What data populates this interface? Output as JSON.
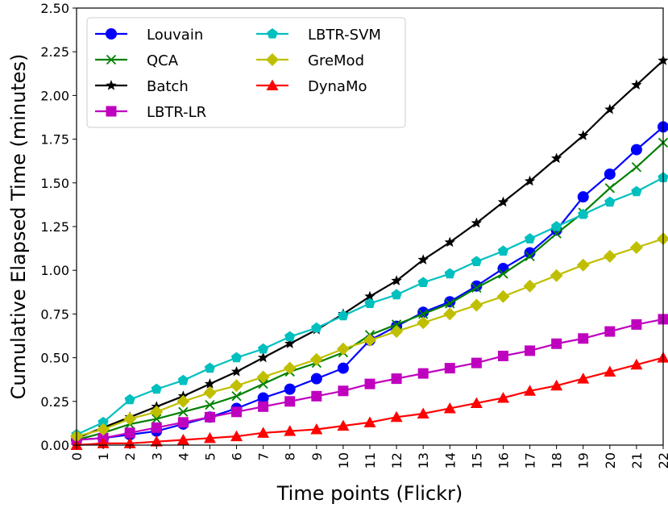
{
  "chart_data": {
    "type": "line",
    "title": "",
    "xlabel": "Time points (Flickr)",
    "ylabel": "Cumulative Elapsed Time (minutes)",
    "x": [
      0,
      1,
      2,
      3,
      4,
      5,
      6,
      7,
      8,
      9,
      10,
      11,
      12,
      13,
      14,
      15,
      16,
      17,
      18,
      19,
      20,
      21,
      22
    ],
    "xlim": [
      0,
      22
    ],
    "ylim": [
      0,
      2.5
    ],
    "yticks": [
      "0.00",
      "0.25",
      "0.50",
      "0.75",
      "1.00",
      "1.25",
      "1.50",
      "1.75",
      "2.00",
      "2.25",
      "2.50"
    ],
    "xticks": [
      "0",
      "1",
      "2",
      "3",
      "4",
      "5",
      "6",
      "7",
      "8",
      "9",
      "10",
      "11",
      "12",
      "13",
      "14",
      "15",
      "16",
      "17",
      "18",
      "19",
      "20",
      "21",
      "22"
    ],
    "grid": false,
    "legend_position": "top-left",
    "series": [
      {
        "name": "Louvain",
        "color": "#0000ff",
        "marker": "circle",
        "values": [
          0.03,
          0.04,
          0.06,
          0.08,
          0.12,
          0.16,
          0.21,
          0.27,
          0.32,
          0.38,
          0.44,
          0.6,
          0.68,
          0.76,
          0.82,
          0.91,
          1.01,
          1.1,
          1.23,
          1.42,
          1.55,
          1.69,
          1.82
        ]
      },
      {
        "name": "QCA",
        "color": "#008000",
        "marker": "x",
        "values": [
          0.03,
          0.07,
          0.12,
          0.15,
          0.19,
          0.23,
          0.28,
          0.35,
          0.42,
          0.47,
          0.53,
          0.63,
          0.69,
          0.75,
          0.81,
          0.9,
          0.98,
          1.08,
          1.21,
          1.33,
          1.47,
          1.59,
          1.73
        ]
      },
      {
        "name": "Batch",
        "color": "#000000",
        "marker": "star",
        "values": [
          0.04,
          0.1,
          0.16,
          0.22,
          0.28,
          0.35,
          0.42,
          0.5,
          0.58,
          0.66,
          0.75,
          0.85,
          0.94,
          1.06,
          1.16,
          1.27,
          1.39,
          1.51,
          1.64,
          1.77,
          1.92,
          2.06,
          2.2
        ]
      },
      {
        "name": "LBTR-LR",
        "color": "#bf00bf",
        "marker": "square",
        "values": [
          0.03,
          0.04,
          0.07,
          0.1,
          0.13,
          0.16,
          0.19,
          0.22,
          0.25,
          0.28,
          0.31,
          0.35,
          0.38,
          0.41,
          0.44,
          0.47,
          0.51,
          0.54,
          0.58,
          0.61,
          0.65,
          0.69,
          0.72
        ]
      },
      {
        "name": "LBTR-SVM",
        "color": "#00bfbf",
        "marker": "pentagon",
        "values": [
          0.06,
          0.13,
          0.26,
          0.32,
          0.37,
          0.44,
          0.5,
          0.55,
          0.62,
          0.67,
          0.74,
          0.81,
          0.86,
          0.93,
          0.98,
          1.05,
          1.11,
          1.18,
          1.25,
          1.32,
          1.39,
          1.45,
          1.53
        ]
      },
      {
        "name": "GreMod",
        "color": "#bfbf00",
        "marker": "diamond",
        "values": [
          0.05,
          0.09,
          0.15,
          0.19,
          0.25,
          0.3,
          0.34,
          0.39,
          0.44,
          0.49,
          0.55,
          0.6,
          0.65,
          0.7,
          0.75,
          0.8,
          0.85,
          0.91,
          0.97,
          1.03,
          1.08,
          1.13,
          1.18
        ]
      },
      {
        "name": "DynaMo",
        "color": "#ff0000",
        "marker": "triangle",
        "values": [
          0.0,
          0.01,
          0.01,
          0.02,
          0.03,
          0.04,
          0.05,
          0.07,
          0.08,
          0.09,
          0.11,
          0.13,
          0.16,
          0.18,
          0.21,
          0.24,
          0.27,
          0.31,
          0.34,
          0.38,
          0.42,
          0.46,
          0.5
        ]
      }
    ]
  }
}
